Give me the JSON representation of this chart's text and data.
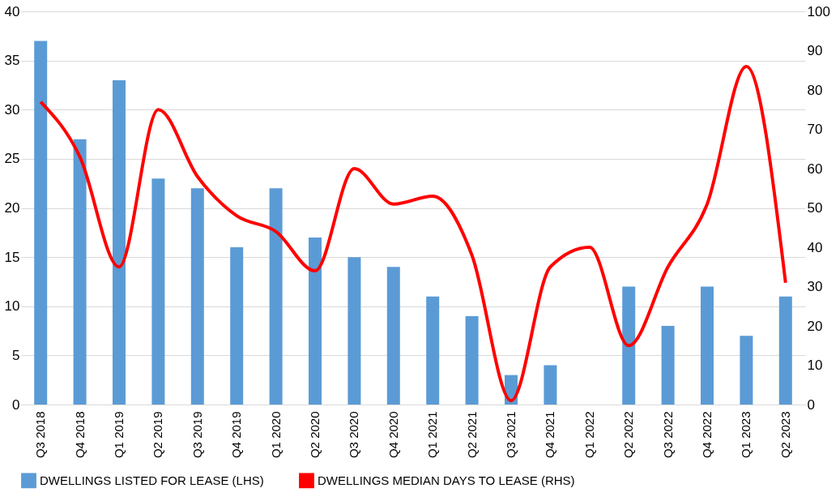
{
  "chart_data": {
    "type": "bar",
    "categories": [
      "Q3 2018",
      "Q4 2018",
      "Q1 2019",
      "Q2 2019",
      "Q3 2019",
      "Q4 2019",
      "Q1 2020",
      "Q2 2020",
      "Q3 2020",
      "Q4 2020",
      "Q1 2021",
      "Q2 2021",
      "Q3 2021",
      "Q4 2021",
      "Q1 2022",
      "Q2 2022",
      "Q3 2022",
      "Q4 2022",
      "Q1 2023",
      "Q2 2023"
    ],
    "series": [
      {
        "name": "DWELLINGS LISTED FOR LEASE (LHS)",
        "color": "#5b9bd5",
        "values": [
          37,
          27,
          33,
          23,
          22,
          16,
          22,
          17,
          15,
          14,
          11,
          9,
          3,
          4,
          null,
          12,
          8,
          12,
          7,
          11
        ]
      },
      {
        "name": "DWELLINGS MEDIAN DAYS TO LEASE (RHS)",
        "type": "line",
        "axis": "y2",
        "color": "#ff0000",
        "values": [
          77,
          63,
          35,
          75,
          58,
          48,
          44,
          34,
          60,
          51,
          53,
          38,
          1,
          35,
          40,
          15,
          35,
          51,
          86,
          31
        ]
      }
    ],
    "ylim": [
      0,
      40
    ],
    "yticks": [
      0,
      5,
      10,
      15,
      20,
      25,
      30,
      35,
      40
    ],
    "y2lim": [
      0,
      100
    ],
    "y2ticks": [
      0,
      10,
      20,
      30,
      40,
      50,
      60,
      70,
      80,
      90,
      100
    ],
    "grid": "y",
    "legend": "bottom",
    "marker": "none",
    "line_style": "solid"
  }
}
